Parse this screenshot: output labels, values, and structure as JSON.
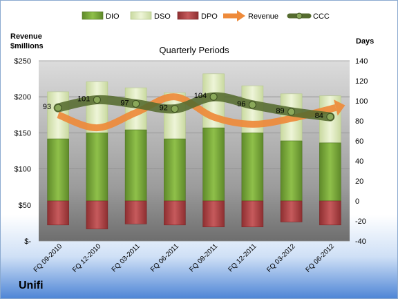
{
  "company": "Unifi",
  "chart_data": {
    "type": "bar",
    "title": "Quarterly Periods",
    "categories": [
      "FQ 09-2010",
      "FQ 12-2010",
      "FQ 03-2011",
      "FQ 06-2011",
      "FQ 09-2011",
      "FQ 12-2011",
      "FQ 03-2012",
      "FQ 06-2012"
    ],
    "y_left": {
      "label_line1": "Revenue",
      "label_line2": "$millions",
      "range": [
        0,
        250
      ],
      "ticks": [
        0,
        50,
        100,
        150,
        200,
        250
      ],
      "tick_labels": [
        "$-",
        "$50",
        "$100",
        "$150",
        "$200",
        "$250"
      ]
    },
    "y_right": {
      "label": "Days",
      "range": [
        -40,
        140
      ],
      "ticks": [
        -40,
        -20,
        0,
        20,
        40,
        60,
        80,
        100,
        120,
        140
      ]
    },
    "legend_position": "top",
    "series": [
      {
        "name": "DIO",
        "type": "stacked-bar",
        "axis": "right",
        "color": "#7aa83c",
        "values": [
          62,
          68,
          71,
          62,
          73,
          68,
          60,
          58
        ]
      },
      {
        "name": "DSO",
        "type": "stacked-bar",
        "axis": "right",
        "color": "#e0ecc0",
        "values": [
          47,
          51,
          42,
          46,
          54,
          47,
          47,
          47
        ]
      },
      {
        "name": "DPO",
        "type": "negative-bar",
        "axis": "right",
        "color": "#c05052",
        "values": [
          -24,
          -28,
          -23,
          -24,
          -26,
          -26,
          -21,
          -24
        ]
      },
      {
        "name": "Revenue",
        "type": "line",
        "axis": "left",
        "color": "#ee8a3a",
        "values": [
          175,
          157,
          178,
          200,
          172,
          162,
          170,
          185
        ]
      },
      {
        "name": "CCC",
        "type": "line",
        "axis": "right",
        "color": "#556b2f",
        "values": [
          93,
          101,
          97,
          92,
          104,
          96,
          89,
          84
        ],
        "labels": [
          "93",
          "101",
          "97",
          "92",
          "104",
          "96",
          "89",
          "84"
        ]
      }
    ]
  }
}
